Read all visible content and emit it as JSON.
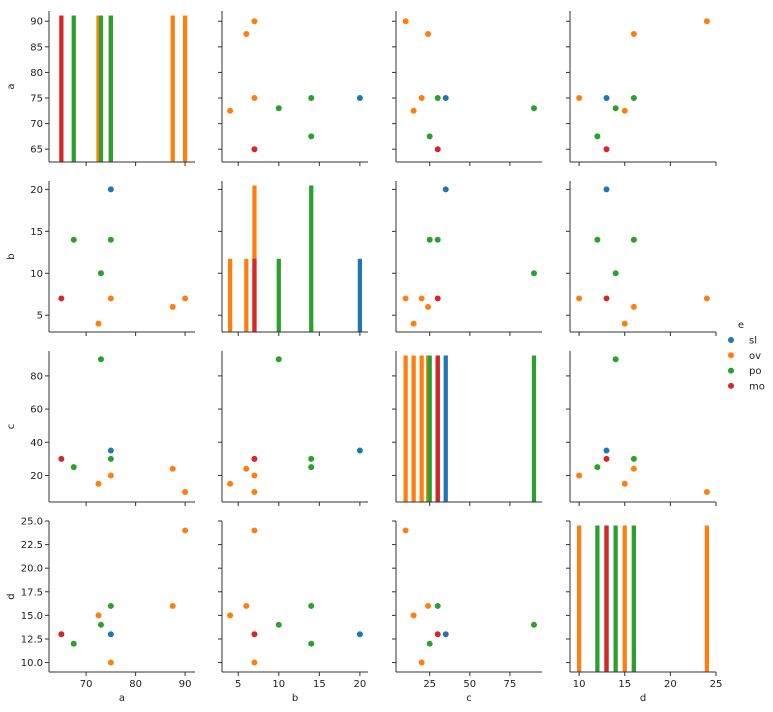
{
  "chart_data": {
    "type": "scatter",
    "kind": "pairplot",
    "variables": [
      "a",
      "b",
      "c",
      "d"
    ],
    "hue": "e",
    "grid": false,
    "legend": {
      "title": "e",
      "placement": "right",
      "entries": [
        {
          "name": "sl",
          "color": "#1f77b4"
        },
        {
          "name": "ov",
          "color": "#ff7f0e"
        },
        {
          "name": "po",
          "color": "#2ca02c"
        },
        {
          "name": "mo",
          "color": "#d62728"
        }
      ]
    },
    "axes": {
      "a": {
        "label": "a",
        "range": [
          62.5,
          92
        ],
        "ticks": [
          65,
          70,
          75,
          80,
          85,
          90
        ],
        "tick_labels": [
          "65",
          "70",
          "75",
          "80",
          "85",
          "90"
        ],
        "x_ticks": [
          70,
          80,
          90
        ],
        "x_tick_labels": [
          "70",
          "80",
          "90"
        ]
      },
      "b": {
        "label": "b",
        "range": [
          3,
          21
        ],
        "ticks": [
          5,
          10,
          15,
          20
        ],
        "tick_labels": [
          "5",
          "10",
          "15",
          "20"
        ]
      },
      "c": {
        "label": "c",
        "range": [
          4,
          95
        ],
        "ticks": [
          20,
          40,
          60,
          80
        ],
        "tick_labels": [
          "20",
          "40",
          "60",
          "80"
        ],
        "x_ticks": [
          25,
          50,
          75
        ],
        "x_tick_labels": [
          "25",
          "50",
          "75"
        ]
      },
      "d": {
        "label": "d",
        "range": [
          9,
          25
        ],
        "ticks": [
          10,
          12.5,
          15,
          17.5,
          20,
          22.5,
          25
        ],
        "tick_labels": [
          "10.0",
          "12.5",
          "15.0",
          "17.5",
          "20.0",
          "22.5",
          "25.0"
        ],
        "x_ticks": [
          10,
          15,
          20,
          25
        ],
        "x_tick_labels": [
          "10",
          "15",
          "20",
          "25"
        ]
      }
    },
    "points": [
      {
        "e": "sl",
        "a": 75,
        "b": 20,
        "c": 35,
        "d": 13
      },
      {
        "e": "ov",
        "a": 90,
        "b": 7,
        "c": 10,
        "d": 24
      },
      {
        "e": "ov",
        "a": 87.5,
        "b": 6,
        "c": 24,
        "d": 16
      },
      {
        "e": "ov",
        "a": 75,
        "b": 7,
        "c": 20,
        "d": 10
      },
      {
        "e": "ov",
        "a": 72.5,
        "b": 4,
        "c": 15,
        "d": 15
      },
      {
        "e": "po",
        "a": 73,
        "b": 10,
        "c": 90,
        "d": 14
      },
      {
        "e": "po",
        "a": 75,
        "b": 14,
        "c": 30,
        "d": 16
      },
      {
        "e": "po",
        "a": 67.5,
        "b": 14,
        "c": 25,
        "d": 12
      },
      {
        "e": "mo",
        "a": 65,
        "b": 7,
        "c": 30,
        "d": 13
      }
    ]
  }
}
